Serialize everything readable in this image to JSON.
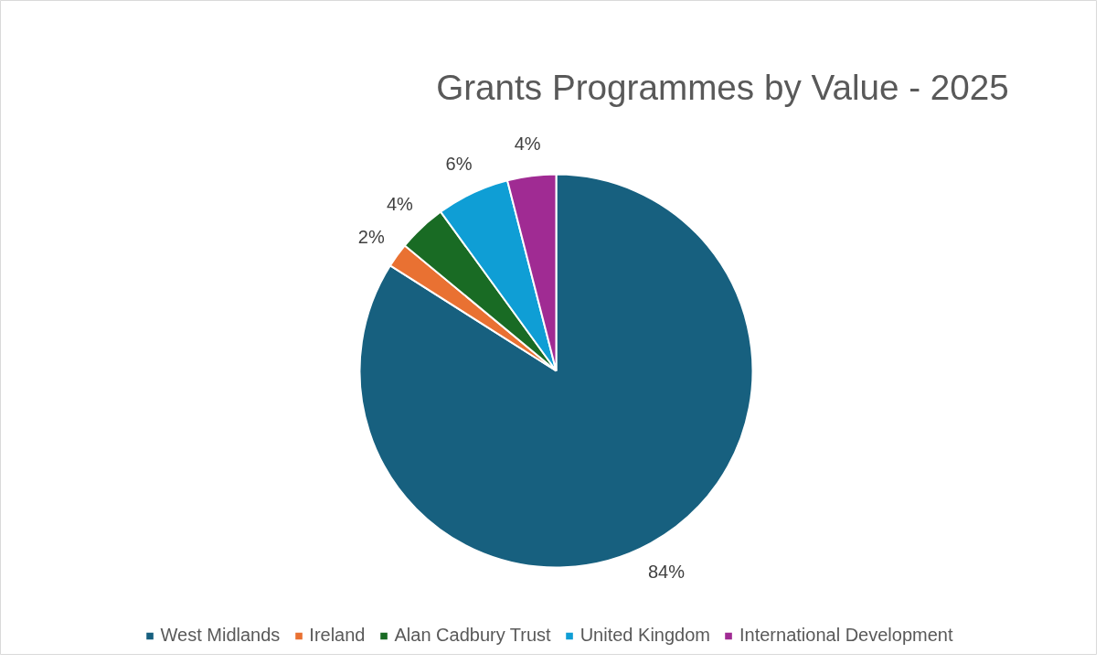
{
  "chart_data": {
    "type": "pie",
    "title": "Grants Programmes by Value - 2025",
    "categories": [
      "West Midlands",
      "Ireland",
      "Alan Cadbury Trust",
      "United Kingdom",
      "International Development"
    ],
    "values": [
      84,
      2,
      4,
      6,
      4
    ],
    "value_labels": [
      "84%",
      "2%",
      "4%",
      "6%",
      "4%"
    ],
    "colors": [
      "#17607f",
      "#e97132",
      "#196b24",
      "#0f9ed5",
      "#a02b93"
    ],
    "legend": "bottom"
  }
}
